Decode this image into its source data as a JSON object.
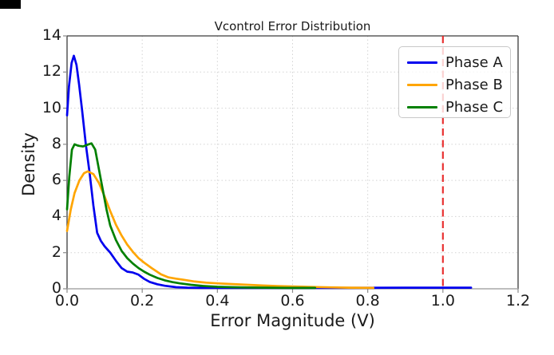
{
  "figure": {
    "title": "Vcontrol Error Distribution",
    "x_axis_label": "Error Magnitude (V)",
    "y_axis_label": "Density"
  },
  "chart_data": {
    "type": "line",
    "title": "Vcontrol Error Distribution",
    "xlabel": "Error Magnitude (V)",
    "ylabel": "Density",
    "xlim": [
      0,
      1.2
    ],
    "ylim": [
      0,
      14
    ],
    "xtick_labels": [
      "0.0",
      "0.2",
      "0.4",
      "0.6",
      "0.8",
      "1.0",
      "1.2"
    ],
    "ytick_labels": [
      "0",
      "2",
      "4",
      "6",
      "8",
      "10",
      "12",
      "14"
    ],
    "grid": "dotted",
    "legend_position": "upper right",
    "threshold_line": {
      "x": 1.0,
      "color": "#e82222",
      "style": "dashed"
    },
    "series": [
      {
        "name": "Phase A",
        "color": "#0000ee",
        "points": [
          [
            0,
            9.6
          ],
          [
            0.005,
            11.2
          ],
          [
            0.012,
            12.5
          ],
          [
            0.018,
            12.9
          ],
          [
            0.025,
            12.4
          ],
          [
            0.032,
            11.3
          ],
          [
            0.04,
            9.9
          ],
          [
            0.05,
            8.0
          ],
          [
            0.06,
            6.4
          ],
          [
            0.07,
            4.6
          ],
          [
            0.08,
            3.1
          ],
          [
            0.09,
            2.65
          ],
          [
            0.1,
            2.35
          ],
          [
            0.115,
            2.0
          ],
          [
            0.13,
            1.55
          ],
          [
            0.145,
            1.15
          ],
          [
            0.16,
            0.95
          ],
          [
            0.175,
            0.9
          ],
          [
            0.19,
            0.78
          ],
          [
            0.205,
            0.55
          ],
          [
            0.22,
            0.38
          ],
          [
            0.24,
            0.25
          ],
          [
            0.26,
            0.17
          ],
          [
            0.29,
            0.09
          ],
          [
            0.32,
            0.06
          ],
          [
            0.36,
            0.05
          ],
          [
            0.5,
            0.05
          ],
          [
            0.7,
            0.05
          ],
          [
            0.9,
            0.06
          ],
          [
            1.0,
            0.06
          ],
          [
            1.075,
            0.06
          ]
        ]
      },
      {
        "name": "Phase B",
        "color": "#ffa500",
        "points": [
          [
            0,
            3.2
          ],
          [
            0.01,
            4.4
          ],
          [
            0.02,
            5.3
          ],
          [
            0.033,
            6.0
          ],
          [
            0.045,
            6.4
          ],
          [
            0.055,
            6.5
          ],
          [
            0.07,
            6.35
          ],
          [
            0.085,
            5.85
          ],
          [
            0.1,
            5.1
          ],
          [
            0.115,
            4.3
          ],
          [
            0.13,
            3.55
          ],
          [
            0.145,
            2.95
          ],
          [
            0.16,
            2.45
          ],
          [
            0.175,
            2.05
          ],
          [
            0.19,
            1.7
          ],
          [
            0.205,
            1.45
          ],
          [
            0.225,
            1.15
          ],
          [
            0.25,
            0.8
          ],
          [
            0.27,
            0.63
          ],
          [
            0.29,
            0.56
          ],
          [
            0.31,
            0.5
          ],
          [
            0.34,
            0.4
          ],
          [
            0.37,
            0.34
          ],
          [
            0.4,
            0.3
          ],
          [
            0.44,
            0.26
          ],
          [
            0.48,
            0.22
          ],
          [
            0.52,
            0.18
          ],
          [
            0.56,
            0.15
          ],
          [
            0.6,
            0.13
          ],
          [
            0.65,
            0.1
          ],
          [
            0.7,
            0.08
          ],
          [
            0.75,
            0.06
          ],
          [
            0.815,
            0.05
          ]
        ]
      },
      {
        "name": "Phase C",
        "color": "#008000",
        "points": [
          [
            0,
            4.4
          ],
          [
            0.006,
            6.2
          ],
          [
            0.013,
            7.7
          ],
          [
            0.02,
            8.0
          ],
          [
            0.03,
            7.92
          ],
          [
            0.042,
            7.88
          ],
          [
            0.055,
            7.98
          ],
          [
            0.065,
            8.05
          ],
          [
            0.075,
            7.7
          ],
          [
            0.085,
            6.6
          ],
          [
            0.095,
            5.5
          ],
          [
            0.105,
            4.4
          ],
          [
            0.115,
            3.5
          ],
          [
            0.13,
            2.7
          ],
          [
            0.145,
            2.1
          ],
          [
            0.16,
            1.7
          ],
          [
            0.175,
            1.4
          ],
          [
            0.19,
            1.15
          ],
          [
            0.205,
            0.95
          ],
          [
            0.22,
            0.78
          ],
          [
            0.24,
            0.6
          ],
          [
            0.26,
            0.47
          ],
          [
            0.28,
            0.37
          ],
          [
            0.3,
            0.3
          ],
          [
            0.33,
            0.22
          ],
          [
            0.36,
            0.16
          ],
          [
            0.4,
            0.11
          ],
          [
            0.44,
            0.09
          ],
          [
            0.48,
            0.07
          ],
          [
            0.53,
            0.06
          ],
          [
            0.58,
            0.05
          ],
          [
            0.66,
            0.05
          ]
        ]
      }
    ],
    "style": {
      "grid_color": "#d3d3d3",
      "spine_color_dark": "#3c3c3c",
      "spine_color_bottom": "#a8a8a8",
      "tick_color": "#8a8a8a",
      "text_color": "#1a1a1a",
      "line_width": 2.7
    }
  }
}
